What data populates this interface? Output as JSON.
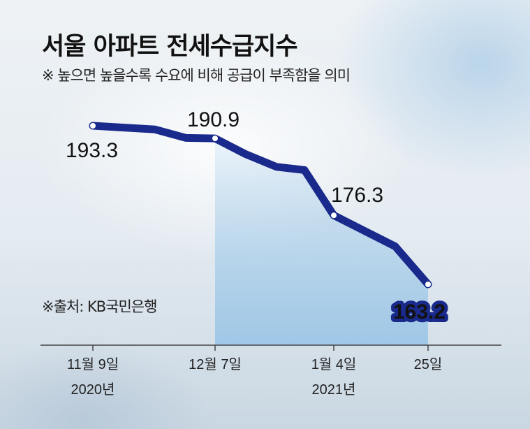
{
  "title": "서울 아파트 전세수급지수",
  "subtitle": "※ 높으면 높을수록 수요에 비해 공급이 부족함을 의미",
  "source": "※출처: KB국민은행",
  "colors": {
    "line": "#1a2a8c",
    "highlight_fill": "#1a2a8c",
    "highlight_text": "#ffffff",
    "area": "#8ec0e6"
  },
  "chart_data": {
    "type": "line",
    "title": "서울 아파트 전세수급지수",
    "xlabel": "",
    "ylabel": "",
    "x": [
      "2020-11-09",
      "",
      "",
      "2020-12-07",
      "",
      "",
      "",
      "2021-01-04",
      "",
      "2021-01-25"
    ],
    "values": [
      193.3,
      192.6,
      191.0,
      190.9,
      187.9,
      185.5,
      184.9,
      176.3,
      170.4,
      163.2
    ],
    "ylim": [
      160,
      196
    ],
    "tick_labels": [
      {
        "index": 0,
        "line1": "11월 9일",
        "line2": "2020년"
      },
      {
        "index": 3,
        "line1": "12월 7일",
        "line2": ""
      },
      {
        "index": 7,
        "line1": "1월 4일",
        "line2": "2021년"
      },
      {
        "index": 9,
        "line1": "25일",
        "line2": ""
      }
    ],
    "data_labels": [
      {
        "index": 0,
        "text": "193.3",
        "highlight": false
      },
      {
        "index": 3,
        "text": "190.9",
        "highlight": false
      },
      {
        "index": 7,
        "text": "176.3",
        "highlight": false
      },
      {
        "index": 9,
        "text": "163.2",
        "highlight": true
      }
    ],
    "grid": false,
    "legend": "none"
  }
}
